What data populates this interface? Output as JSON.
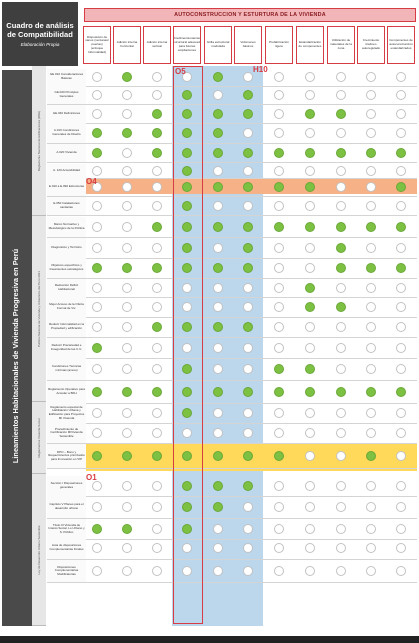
{
  "corner": {
    "title": "Cuadro de análisis de Compatibilidad",
    "subtitle": "Elaboración Propia"
  },
  "banner": "AUTOCONSTRUCCION Y ESTURTURA DE LA VIVIENDA",
  "columns": [
    "Disposición de vanos (ventanas/ puertas) (enfoque Informalidad)",
    "Adición interna horizontal",
    "Adición interna vertical",
    "Sobredimensionamiento estructural adecuado para futuras ampliaciones",
    "Grilla estructural modulada",
    "Volúmenes básicos",
    "Prefabricación ligera",
    "Estandarización de componentes",
    "Utilización de materiales de la zona",
    "Crecimiento tiralíneo autoregulado",
    "Componentes de autoconstrucción estandarizados"
  ],
  "group_vertical": "Lineamientos Habitacionales de Vivienda Progresiva en Perú",
  "subgroups": [
    "Reglamento Nacional de Edificaciones (RNE)",
    "Política Nacional de Vivienda y Urbanismo del Perú 2021",
    "Reglamentos Vivienda Social",
    "Ley de Desarrollo Urbano Sostenible"
  ],
  "rows": [
    "GE.010 Consideraciones Básicas",
    "GE.020 Principios Generales",
    "GE.040 Definiciones",
    "A.010 Condiciones Generales de Diseño",
    "A.020 Vivienda",
    "A. 120 Accesibilidad",
    "E.010 a E.090 Estructuras",
    "E.050 Instalaciones sanitarias",
    "Marco Normativo y Metodológico de la Política",
    "Diagnóstico y Territorio",
    "Objetivos específicos y lineamientos estratégicos",
    "Reducción Déficit Habitacional",
    "Mejor Acceso de la Oferta Formal de Viv.",
    "Reducir Informalidad en la Propiedad y edificación",
    "Reducir Precariedad e Inseguridad de las C.U.",
    "Condiciones Técnicas mínimas (anexo)",
    "Reglamento Operativo para Acceder a BFH",
    "Reglamento especial de Habilitación Urbana y Edificación para Proyectos MI Vivienda",
    "Procedimiento de Certificación MIVivienda Sostenible",
    "DPO – Bono y Requerimientos priorizados para Innovación en VIP",
    "Sección I Disposiciones generales",
    "Capítulo V Planes para el desarrollo urbano",
    "Título III Vivienda de Interés Social, Lo Urbano y S. Público",
    "Lista de disposiciones Complementarias Finales",
    "Disposiciones Complementarias Modificatorias"
  ],
  "matrix": [
    [
      0,
      1,
      0,
      0,
      1,
      0,
      0,
      0,
      0,
      0,
      0
    ],
    [
      0,
      0,
      0,
      1,
      0,
      1,
      0,
      0,
      0,
      0,
      0
    ],
    [
      0,
      0,
      1,
      1,
      1,
      1,
      0,
      1,
      1,
      0,
      0
    ],
    [
      1,
      1,
      1,
      1,
      1,
      0,
      0,
      0,
      0,
      0,
      0
    ],
    [
      1,
      0,
      1,
      1,
      1,
      1,
      1,
      1,
      1,
      1,
      1
    ],
    [
      0,
      0,
      0,
      1,
      0,
      0,
      0,
      0,
      0,
      0,
      0
    ],
    [
      0,
      0,
      0,
      1,
      1,
      1,
      1,
      1,
      0,
      0,
      1
    ],
    [
      0,
      0,
      0,
      1,
      0,
      0,
      0,
      0,
      0,
      0,
      0
    ],
    [
      0,
      0,
      1,
      1,
      1,
      1,
      1,
      1,
      1,
      1,
      1
    ],
    [
      0,
      0,
      0,
      1,
      0,
      1,
      0,
      0,
      1,
      0,
      0
    ],
    [
      1,
      1,
      1,
      1,
      1,
      1,
      0,
      0,
      1,
      1,
      1
    ],
    [
      0,
      0,
      0,
      0,
      0,
      0,
      0,
      1,
      0,
      0,
      0
    ],
    [
      0,
      0,
      0,
      0,
      0,
      0,
      0,
      1,
      1,
      0,
      0
    ],
    [
      0,
      0,
      1,
      1,
      1,
      1,
      0,
      0,
      0,
      0,
      0
    ],
    [
      1,
      0,
      0,
      0,
      0,
      0,
      0,
      0,
      0,
      0,
      0
    ],
    [
      0,
      0,
      0,
      1,
      0,
      0,
      1,
      1,
      0,
      0,
      0
    ],
    [
      1,
      1,
      1,
      1,
      1,
      1,
      1,
      1,
      1,
      1,
      1
    ],
    [
      0,
      0,
      0,
      1,
      0,
      0,
      0,
      0,
      0,
      0,
      0
    ],
    [
      0,
      0,
      0,
      0,
      0,
      0,
      0,
      0,
      0,
      0,
      0
    ],
    [
      1,
      1,
      1,
      1,
      1,
      1,
      1,
      0,
      0,
      1,
      0
    ],
    [
      0,
      0,
      0,
      1,
      1,
      1,
      0,
      0,
      0,
      0,
      0
    ],
    [
      0,
      0,
      0,
      1,
      1,
      0,
      0,
      0,
      0,
      0,
      0
    ],
    [
      1,
      1,
      0,
      1,
      0,
      0,
      0,
      0,
      0,
      0,
      0
    ],
    [
      0,
      0,
      0,
      0,
      0,
      0,
      0,
      0,
      0,
      0,
      0
    ],
    [
      0,
      0,
      0,
      0,
      0,
      0,
      0,
      0,
      0,
      0,
      0
    ]
  ],
  "markers": {
    "o5": "O5",
    "h10": "H10",
    "o4": "O4",
    "o1": "O1"
  },
  "colors": {
    "red": "#d63c43",
    "green": "#7dc143",
    "blue_band": "#bcd6ec",
    "orange_band": "#f6b186",
    "yellow_band": "#ffd95a",
    "dark": "#3f3f3f"
  }
}
